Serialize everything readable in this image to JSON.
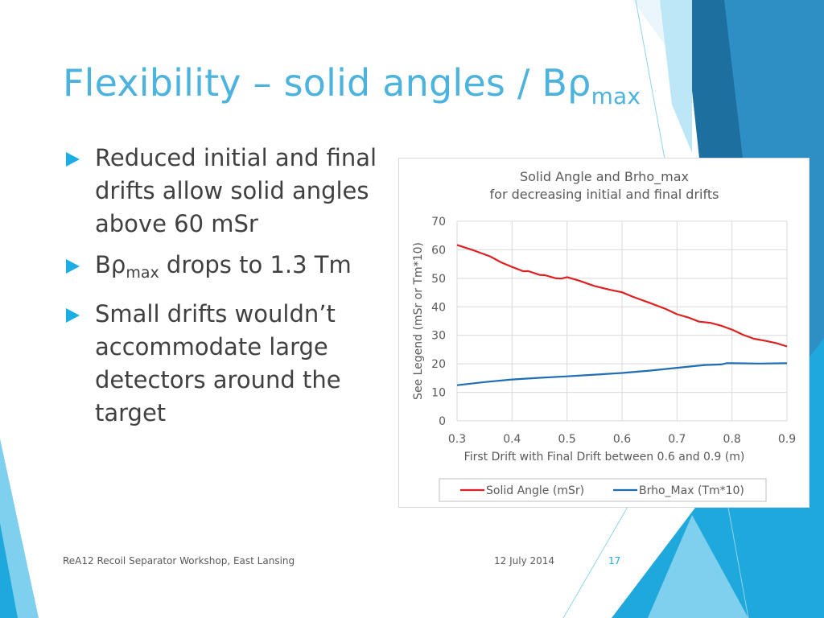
{
  "slide": {
    "title_main": "Flexibility – solid angles / Bρ",
    "title_sub": "max",
    "bullets": [
      {
        "text": "Reduced initial and final drifts allow solid angles above 60 mSr"
      },
      {
        "prefix": "Bρ",
        "sub": "max",
        "suffix": " drops to 1.3 Tm"
      },
      {
        "text": "Small drifts wouldn’t accommodate large detectors around the target"
      }
    ],
    "footer": {
      "left": "ReA12 Recoil Separator Workshop, East Lansing",
      "date": "12 July 2014",
      "page": "17"
    },
    "colors": {
      "title": "#4bb3dd",
      "bullet_marker": "#1cade4",
      "text": "#404040"
    }
  },
  "chart_data": {
    "type": "line",
    "title": [
      "Solid Angle and Brho_max",
      "for decreasing initial and final drifts"
    ],
    "xlabel": "First Drift with Final Drift between 0.6 and 0.9 (m)",
    "ylabel": "See Legend (mSr or Tm*10)",
    "xlim": [
      0.3,
      0.9
    ],
    "ylim": [
      0,
      70
    ],
    "xticks": [
      "0.3",
      "0.4",
      "0.5",
      "0.6",
      "0.7",
      "0.8",
      "0.9"
    ],
    "yticks": [
      "0",
      "10",
      "20",
      "30",
      "40",
      "50",
      "60",
      "70"
    ],
    "grid": true,
    "legend_position": "bottom",
    "series": [
      {
        "name": "Solid Angle (mSr)",
        "color": "#e02020",
        "x": [
          0.3,
          0.33,
          0.36,
          0.38,
          0.4,
          0.42,
          0.43,
          0.45,
          0.46,
          0.48,
          0.49,
          0.5,
          0.52,
          0.55,
          0.58,
          0.6,
          0.62,
          0.65,
          0.68,
          0.7,
          0.72,
          0.74,
          0.76,
          0.78,
          0.8,
          0.82,
          0.84,
          0.86,
          0.88,
          0.9
        ],
        "y": [
          61.7,
          59.8,
          57.7,
          55.6,
          54.0,
          52.5,
          52.5,
          51.2,
          51.1,
          50.0,
          49.9,
          50.4,
          49.3,
          47.3,
          45.9,
          45.1,
          43.5,
          41.4,
          39.2,
          37.4,
          36.3,
          34.8,
          34.4,
          33.4,
          32.0,
          30.2,
          28.8,
          28.1,
          27.3,
          26.1
        ]
      },
      {
        "name": "Brho_Max (Tm*10)",
        "color": "#1f6db5",
        "x": [
          0.3,
          0.35,
          0.4,
          0.45,
          0.5,
          0.55,
          0.6,
          0.65,
          0.7,
          0.75,
          0.78,
          0.79,
          0.8,
          0.85,
          0.9
        ],
        "y": [
          12.5,
          13.6,
          14.5,
          15.1,
          15.6,
          16.2,
          16.8,
          17.6,
          18.6,
          19.6,
          19.8,
          20.2,
          20.2,
          20.1,
          20.2
        ]
      }
    ]
  }
}
